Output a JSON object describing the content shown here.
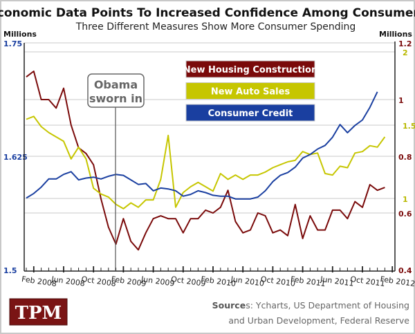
{
  "chart_data": {
    "type": "line",
    "title": "Economic Data Points To Increased Confidence Among Consumers",
    "subtitle": "Three Different Measures Show More Consumer Spending",
    "left_axis": {
      "label": "Millions",
      "ticks": [
        "1.5",
        "1.625",
        "1.75"
      ],
      "range": [
        1.5,
        1.75
      ],
      "color": "#1a3fa0",
      "series": "Consumer Credit"
    },
    "right_axis": {
      "label": "Millions",
      "scales": [
        {
          "series": "New Housing Construction",
          "ticks": [
            "0.4",
            "0.6",
            "0.8",
            "1",
            "1.2"
          ],
          "range": [
            0.4,
            1.2
          ],
          "color": "#7a0a0a"
        },
        {
          "series": "New Auto Sales",
          "ticks": [
            "1",
            "1.5",
            "2"
          ],
          "range": [
            1,
            2
          ],
          "color": "#c6c600"
        }
      ]
    },
    "x_start": "Jan 2008",
    "x_tick_labels": [
      "Feb 2008",
      "Jun 2008",
      "Oct 2008",
      "Feb 2009",
      "Jun 2009",
      "Oct 2009",
      "Feb 2010",
      "Jun 2010",
      "Oct 2010",
      "Feb 2011",
      "Jun 2011",
      "Oct 2011",
      "Feb 2012"
    ],
    "grid": true,
    "annotation": {
      "label_line1": "Obama",
      "label_line2": "sworn in",
      "date": "Jan 2009"
    },
    "legend_placement": "top-center",
    "series": [
      {
        "name": "New Housing Construction",
        "color": "#7a0a0a",
        "axis": "right-red",
        "values": [
          1.08,
          1.1,
          1.0,
          1.0,
          0.97,
          1.04,
          0.91,
          0.83,
          0.81,
          0.77,
          0.65,
          0.55,
          0.49,
          0.58,
          0.5,
          0.47,
          0.53,
          0.58,
          0.59,
          0.58,
          0.58,
          0.53,
          0.58,
          0.58,
          0.61,
          0.6,
          0.62,
          0.68,
          0.57,
          0.53,
          0.54,
          0.6,
          0.59,
          0.53,
          0.54,
          0.52,
          0.63,
          0.51,
          0.59,
          0.54,
          0.54,
          0.61,
          0.61,
          0.58,
          0.64,
          0.62,
          0.7,
          0.68,
          0.69
        ]
      },
      {
        "name": "New Auto Sales",
        "color": "#c6c600",
        "axis": "right-yellow",
        "values": [
          1.54,
          1.56,
          1.49,
          1.45,
          1.42,
          1.39,
          1.27,
          1.35,
          1.27,
          1.07,
          1.03,
          1.01,
          0.96,
          0.93,
          0.97,
          0.94,
          0.99,
          0.99,
          1.13,
          1.43,
          0.94,
          1.04,
          1.08,
          1.11,
          1.08,
          1.05,
          1.17,
          1.13,
          1.16,
          1.13,
          1.16,
          1.16,
          1.18,
          1.21,
          1.23,
          1.25,
          1.26,
          1.32,
          1.3,
          1.31,
          1.17,
          1.16,
          1.22,
          1.21,
          1.31,
          1.32,
          1.36,
          1.35,
          1.42
        ]
      },
      {
        "name": "Consumer Credit",
        "color": "#1a3fa0",
        "axis": "left",
        "values": [
          1.579,
          1.584,
          1.591,
          1.6,
          1.6,
          1.605,
          1.608,
          1.599,
          1.601,
          1.602,
          1.6,
          1.603,
          1.605,
          1.604,
          1.599,
          1.594,
          1.595,
          1.587,
          1.59,
          1.589,
          1.587,
          1.581,
          1.583,
          1.587,
          1.585,
          1.582,
          1.581,
          1.581,
          1.578,
          1.578,
          1.578,
          1.58,
          1.587,
          1.597,
          1.604,
          1.607,
          1.613,
          1.623,
          1.627,
          1.633,
          1.637,
          1.646,
          1.66,
          1.651,
          1.659,
          1.665,
          1.679,
          1.696
        ]
      }
    ]
  },
  "footer": {
    "logo_text": "TPM",
    "logo_color": "#7a1414",
    "sources_bold": "Source",
    "sources_line1_rest": "s: Ycharts, US Department of Housing",
    "sources_line2": "and Urban Development, Federal Reserve"
  }
}
